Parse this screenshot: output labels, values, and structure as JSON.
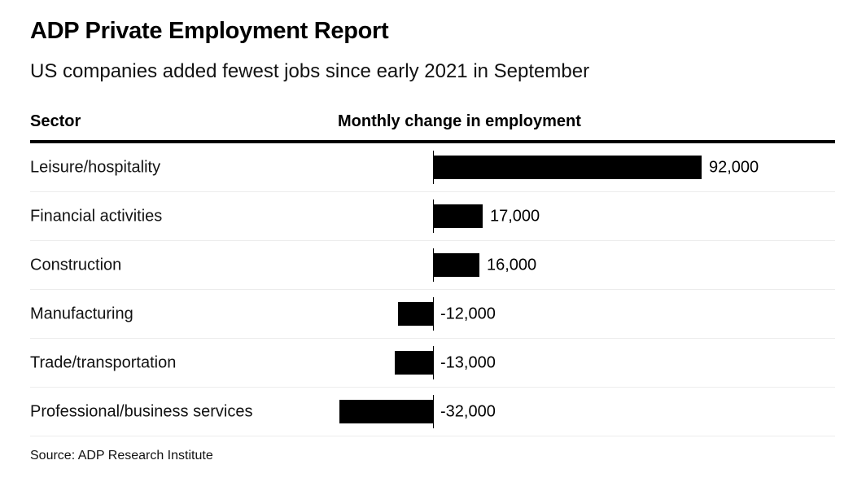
{
  "header": {
    "title": "ADP Private Employment Report",
    "subtitle": "US companies added fewest jobs since early 2021 in September"
  },
  "table": {
    "sector_column_label": "Sector",
    "value_column_label": "Monthly change in employment"
  },
  "chart_data": {
    "type": "bar",
    "orientation": "horizontal",
    "title": "ADP Private Employment Report",
    "subtitle": "US companies added fewest jobs since early 2021 in September",
    "xlabel": "Monthly change in employment",
    "ylabel": "Sector",
    "categories": [
      "Leisure/hospitality",
      "Financial activities",
      "Construction",
      "Manufacturing",
      "Trade/transportation",
      "Professional/business services"
    ],
    "values": [
      92000,
      17000,
      16000,
      -12000,
      -13000,
      -32000
    ],
    "value_labels": [
      "92,000",
      "17,000",
      "16,000",
      "-12,000",
      "-13,000",
      "-32,000"
    ],
    "xlim": [
      -32000,
      92000
    ],
    "bar_color": "#000000",
    "grid": false,
    "legend": false
  },
  "footer": {
    "source": "Source: ADP Research Institute"
  }
}
